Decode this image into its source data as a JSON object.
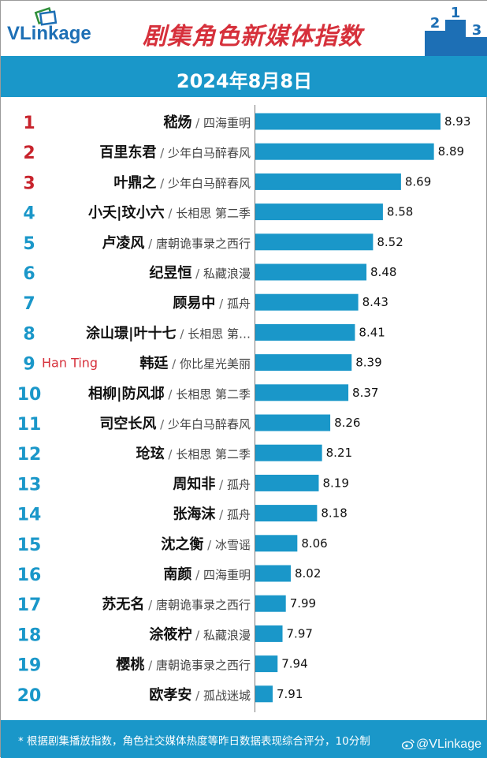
{
  "header": {
    "logo_text": "VLinkage",
    "title": "剧集角色新媒体指数",
    "date": "2024年8月8日"
  },
  "footer": {
    "footnote": "* 根据剧集播放指数，角色社交媒体热度等昨日数据表现综合评分，10分制",
    "watermark": "@VLinkage"
  },
  "colors": {
    "bar": "#1a97c9",
    "top_rank": "#c8232c",
    "rank": "#1a97c9",
    "annotation": "#d6303b",
    "text": "#111111",
    "subtext": "#444444"
  },
  "chart_data": {
    "type": "bar",
    "orientation": "horizontal",
    "title": "剧集角色新媒体指数",
    "categories": [
      "嵇炀",
      "百里东君",
      "叶鼎之",
      "小夭|玟小六",
      "卢凌风",
      "纪昱恒",
      "顾易中",
      "涂山璟|叶十七",
      "韩廷",
      "相柳|防风邶",
      "司空长风",
      "玱玹",
      "周知非",
      "张海沫",
      "沈之衡",
      "南颜",
      "苏无名",
      "涂筱柠",
      "樱桃",
      "欧孝安"
    ],
    "dramas": [
      "四海重明",
      "少年白马醉春风",
      "少年白马醉春风",
      "长相思 第二季",
      "唐朝诡事录之西行",
      "私藏浪漫",
      "孤舟",
      "长相思 第…",
      "你比星光美丽",
      "长相思 第二季",
      "少年白马醉春风",
      "长相思 第二季",
      "孤舟",
      "孤舟",
      "冰雪谣",
      "四海重明",
      "唐朝诡事录之西行",
      "私藏浪漫",
      "唐朝诡事录之西行",
      "孤战迷城"
    ],
    "ranks": [
      "1",
      "2",
      "3",
      "4",
      "5",
      "6",
      "7",
      "8",
      "9",
      "10",
      "11",
      "12",
      "13",
      "14",
      "15",
      "16",
      "17",
      "18",
      "19",
      "20"
    ],
    "values": [
      8.93,
      8.89,
      8.69,
      8.58,
      8.52,
      8.48,
      8.43,
      8.41,
      8.39,
      8.37,
      8.26,
      8.21,
      8.19,
      8.18,
      8.06,
      8.02,
      7.99,
      7.97,
      7.94,
      7.91
    ],
    "value_labels": [
      "8.93",
      "8.89",
      "8.69",
      "8.58",
      "8.52",
      "8.48",
      "8.43",
      "8.41",
      "8.39",
      "8.37",
      "8.26",
      "8.21",
      "8.19",
      "8.18",
      "8.06",
      "8.02",
      "7.99",
      "7.97",
      "7.94",
      "7.91"
    ],
    "annotations": [
      {
        "rank": "9",
        "text": "Han Ting"
      }
    ],
    "xlim": [
      7.85,
      8.93
    ],
    "separator": "/"
  }
}
